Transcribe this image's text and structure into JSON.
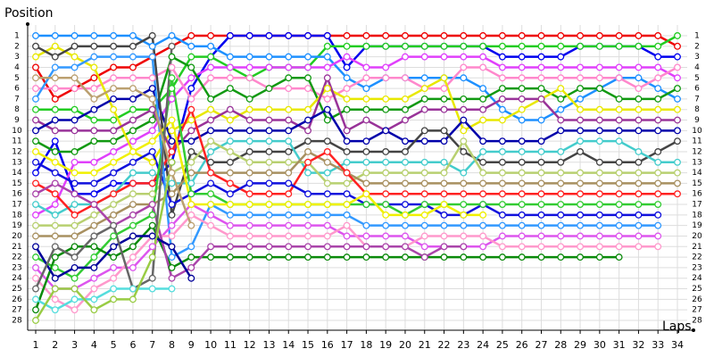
{
  "chart_data": {
    "type": "line",
    "y_label": "Position",
    "x_label": "Laps",
    "x": [
      1,
      2,
      3,
      4,
      5,
      6,
      7,
      8,
      9,
      10,
      11,
      12,
      13,
      14,
      15,
      16,
      17,
      18,
      19,
      20,
      21,
      22,
      23,
      24,
      25,
      26,
      27,
      28,
      29,
      30,
      31,
      32,
      33,
      34
    ],
    "xlim": [
      1,
      34
    ],
    "xticks": [
      1,
      2,
      3,
      4,
      5,
      6,
      7,
      8,
      9,
      10,
      11,
      12,
      13,
      14,
      15,
      16,
      17,
      18,
      19,
      20,
      21,
      22,
      23,
      24,
      25,
      26,
      27,
      28,
      29,
      30,
      31,
      32,
      33,
      34
    ],
    "ylim": [
      28,
      1
    ],
    "yticks": [
      1,
      2,
      3,
      4,
      5,
      6,
      7,
      8,
      9,
      10,
      11,
      12,
      13,
      14,
      15,
      16,
      17,
      18,
      19,
      20,
      21,
      22,
      23,
      24,
      25,
      26,
      27,
      28
    ],
    "grid": true,
    "marker_fill": "#ffffff",
    "series": [
      {
        "color": "#ee0000",
        "values": [
          4,
          7,
          6,
          5,
          4,
          4,
          3,
          2,
          1,
          1,
          1,
          1,
          1,
          1,
          1,
          1,
          1,
          1,
          1,
          1,
          1,
          1,
          1,
          1,
          1,
          1,
          1,
          1,
          1,
          1,
          1,
          1,
          1,
          2
        ]
      },
      {
        "color": "#0000ee",
        "values": [
          14,
          11,
          16,
          16,
          15,
          15,
          15,
          13,
          6,
          3,
          1,
          1,
          1,
          1,
          1,
          1,
          4,
          2,
          2,
          2,
          2,
          2,
          2,
          2,
          3,
          3,
          3,
          3,
          2,
          2,
          2,
          2,
          3,
          3
        ]
      },
      {
        "color": "#22cc22",
        "values": [
          8,
          8,
          8,
          9,
          9,
          8,
          8,
          6,
          3,
          3,
          4,
          5,
          4,
          4,
          4,
          2,
          2,
          2,
          2,
          2,
          2,
          2,
          2,
          2,
          2,
          2,
          2,
          2,
          2,
          2,
          2,
          2,
          2,
          1
        ]
      },
      {
        "color": "#1e90ff",
        "values": [
          1,
          1,
          1,
          1,
          1,
          1,
          2,
          1,
          2,
          2,
          3,
          3,
          3,
          3,
          3,
          3,
          5,
          6,
          5,
          5,
          5,
          5,
          5,
          6,
          8,
          9,
          9,
          8,
          7,
          6,
          5,
          5,
          6,
          7
        ]
      },
      {
        "color": "#e040fb",
        "values": [
          18,
          17,
          13,
          13,
          12,
          11,
          10,
          7,
          5,
          4,
          4,
          4,
          4,
          4,
          4,
          4,
          3,
          4,
          4,
          3,
          3,
          3,
          3,
          3,
          4,
          4,
          4,
          4,
          4,
          4,
          4,
          4,
          4,
          5
        ]
      },
      {
        "color": "#ff88cc",
        "values": [
          6,
          6,
          6,
          6,
          5,
          5,
          5,
          4,
          7,
          5,
          5,
          5,
          6,
          6,
          6,
          7,
          6,
          5,
          5,
          5,
          6,
          6,
          4,
          4,
          5,
          5,
          5,
          5,
          5,
          5,
          5,
          6,
          5,
          4
        ]
      },
      {
        "color": "#119911",
        "values": [
          11,
          12,
          12,
          11,
          11,
          10,
          9,
          3,
          4,
          7,
          6,
          7,
          6,
          5,
          5,
          9,
          8,
          8,
          8,
          8,
          7,
          7,
          7,
          7,
          6,
          6,
          6,
          7,
          6,
          6,
          7,
          7,
          7,
          6
        ]
      },
      {
        "color": "#e8e800",
        "values": [
          3,
          2,
          3,
          4,
          8,
          12,
          13,
          10,
          9,
          8,
          9,
          8,
          8,
          8,
          8,
          6,
          7,
          7,
          7,
          7,
          6,
          5,
          10,
          9,
          9,
          8,
          7,
          6,
          8,
          8,
          8,
          8,
          8,
          8
        ]
      },
      {
        "color": "#993399",
        "values": [
          9,
          10,
          10,
          10,
          10,
          9,
          8,
          12,
          10,
          9,
          8,
          9,
          9,
          9,
          10,
          5,
          10,
          9,
          10,
          9,
          8,
          8,
          8,
          8,
          7,
          7,
          7,
          9,
          9,
          9,
          9,
          9,
          9,
          9
        ]
      },
      {
        "color": "#0000aa",
        "values": [
          10,
          9,
          9,
          8,
          7,
          7,
          6,
          11,
          11,
          10,
          10,
          10,
          10,
          10,
          9,
          8,
          11,
          11,
          10,
          11,
          11,
          11,
          9,
          11,
          11,
          11,
          11,
          10,
          10,
          10,
          10,
          10,
          10,
          10
        ]
      },
      {
        "color": "#444444",
        "values": [
          2,
          3,
          2,
          2,
          2,
          2,
          1,
          18,
          12,
          13,
          13,
          12,
          12,
          12,
          11,
          11,
          12,
          12,
          12,
          12,
          10,
          10,
          12,
          13,
          13,
          13,
          13,
          13,
          12,
          13,
          13,
          13,
          12,
          11
        ]
      },
      {
        "color": "#44cccc",
        "values": [
          17,
          18,
          17,
          17,
          16,
          14,
          14,
          15,
          15,
          12,
          11,
          11,
          11,
          11,
          14,
          14,
          13,
          13,
          13,
          13,
          13,
          13,
          14,
          12,
          12,
          12,
          12,
          12,
          11,
          11,
          11,
          12,
          13,
          13
        ]
      },
      {
        "color": "#b8d070",
        "values": [
          19,
          19,
          19,
          18,
          17,
          16,
          16,
          14,
          13,
          11,
          12,
          13,
          13,
          13,
          13,
          15,
          15,
          14,
          14,
          14,
          14,
          14,
          11,
          14,
          14,
          14,
          14,
          14,
          14,
          14,
          14,
          14,
          14,
          14
        ]
      },
      {
        "color": "#a89060",
        "values": [
          20,
          20,
          20,
          19,
          18,
          17,
          17,
          16,
          14,
          14,
          14,
          14,
          14,
          14,
          12,
          13,
          14,
          15,
          15,
          15,
          15,
          15,
          15,
          15,
          15,
          15,
          15,
          15,
          15,
          15,
          15,
          15,
          15,
          15
        ]
      },
      {
        "color": "#ff2222",
        "values": [
          15,
          16,
          18,
          17,
          16,
          15,
          15,
          12,
          8,
          14,
          15,
          16,
          16,
          16,
          13,
          12,
          14,
          16,
          16,
          16,
          16,
          16,
          16,
          16,
          16,
          16,
          16,
          16,
          16,
          16,
          16,
          16,
          16,
          16
        ]
      },
      {
        "color": "#1111dd",
        "values": [
          13,
          14,
          15,
          15,
          14,
          13,
          12,
          17,
          16,
          15,
          16,
          15,
          15,
          15,
          16,
          16,
          16,
          17,
          17,
          17,
          17,
          18,
          18,
          17,
          18,
          18,
          18,
          18,
          18,
          18,
          18,
          18,
          18,
          null
        ]
      },
      {
        "color": "#33cc33",
        "values": [
          22,
          23,
          24,
          22,
          20,
          19,
          18,
          5,
          16,
          16,
          17,
          17,
          17,
          17,
          17,
          17,
          17,
          17,
          17,
          18,
          17,
          17,
          17,
          17,
          17,
          17,
          17,
          17,
          17,
          17,
          17,
          17,
          17,
          null
        ]
      },
      {
        "color": "#3399ff",
        "values": [
          7,
          4,
          4,
          3,
          3,
          3,
          3,
          22,
          21,
          17,
          18,
          18,
          18,
          18,
          18,
          18,
          18,
          19,
          19,
          19,
          19,
          19,
          19,
          19,
          19,
          19,
          19,
          19,
          19,
          19,
          19,
          19,
          19,
          null
        ]
      },
      {
        "color": "#dd55ee",
        "values": [
          23,
          25,
          25,
          24,
          23,
          23,
          21,
          19,
          17,
          18,
          19,
          19,
          19,
          19,
          19,
          19,
          20,
          20,
          20,
          20,
          21,
          21,
          21,
          21,
          20,
          20,
          20,
          20,
          20,
          20,
          20,
          20,
          20,
          null
        ]
      },
      {
        "color": "#ff99cc",
        "values": [
          24,
          26,
          27,
          25,
          24,
          22,
          20,
          20,
          18,
          19,
          20,
          20,
          20,
          20,
          20,
          20,
          19,
          21,
          21,
          21,
          20,
          20,
          20,
          20,
          21,
          21,
          21,
          21,
          21,
          21,
          21,
          21,
          21,
          null
        ]
      },
      {
        "color": "#0a8a0a",
        "values": [
          27,
          22,
          21,
          21,
          22,
          21,
          19,
          23,
          22,
          22,
          22,
          22,
          22,
          22,
          22,
          22,
          22,
          22,
          22,
          22,
          22,
          22,
          22,
          22,
          22,
          22,
          22,
          22,
          22,
          22,
          22,
          null,
          null,
          null
        ]
      },
      {
        "color": "#f0f000",
        "values": [
          12,
          13,
          14,
          14,
          13,
          12,
          11,
          9,
          17,
          17,
          17,
          17,
          17,
          17,
          17,
          17,
          17,
          16,
          18,
          18,
          18,
          17,
          18,
          18,
          null,
          null,
          null,
          null,
          null,
          null,
          null,
          null,
          null,
          null
        ]
      },
      {
        "color": "#aa44aa",
        "values": [
          16,
          15,
          16,
          17,
          19,
          18,
          17,
          24,
          23,
          21,
          21,
          21,
          21,
          21,
          21,
          21,
          21,
          21,
          21,
          21,
          22,
          21,
          21,
          null,
          null,
          null,
          null,
          null,
          null,
          null,
          null,
          null,
          null,
          null
        ]
      },
      {
        "color": "#000099",
        "values": [
          21,
          24,
          23,
          23,
          21,
          20,
          20,
          21,
          24,
          null,
          null,
          null,
          null,
          null,
          null,
          null,
          null,
          null,
          null,
          null,
          null,
          null,
          null,
          null,
          null,
          null,
          null,
          null,
          null,
          null,
          null,
          null,
          null,
          null
        ]
      },
      {
        "color": "#666666",
        "values": [
          25,
          21,
          22,
          20,
          19,
          25,
          24,
          2,
          null,
          null,
          null,
          null,
          null,
          null,
          null,
          null,
          null,
          null,
          null,
          null,
          null,
          null,
          null,
          null,
          null,
          null,
          null,
          null,
          null,
          null,
          null,
          null,
          null,
          null
        ]
      },
      {
        "color": "#55dddd",
        "values": [
          26,
          27,
          26,
          26,
          25,
          25,
          25,
          25,
          null,
          null,
          null,
          null,
          null,
          null,
          null,
          null,
          null,
          null,
          null,
          null,
          null,
          null,
          null,
          null,
          null,
          null,
          null,
          null,
          null,
          null,
          null,
          null,
          null,
          null
        ]
      },
      {
        "color": "#99cc44",
        "values": [
          28,
          25,
          25,
          27,
          26,
          26,
          22,
          13,
          null,
          null,
          null,
          null,
          null,
          null,
          null,
          null,
          null,
          null,
          null,
          null,
          null,
          null,
          null,
          null,
          null,
          null,
          null,
          null,
          null,
          null,
          null,
          null,
          null,
          null
        ]
      },
      {
        "color": "#bba070",
        "values": [
          5,
          5,
          5,
          7,
          6,
          6,
          7,
          14,
          19,
          null,
          null,
          null,
          null,
          null,
          null,
          null,
          null,
          null,
          null,
          null,
          null,
          null,
          null,
          null,
          null,
          null,
          null,
          null,
          null,
          null,
          null,
          null,
          null,
          null
        ]
      }
    ]
  }
}
